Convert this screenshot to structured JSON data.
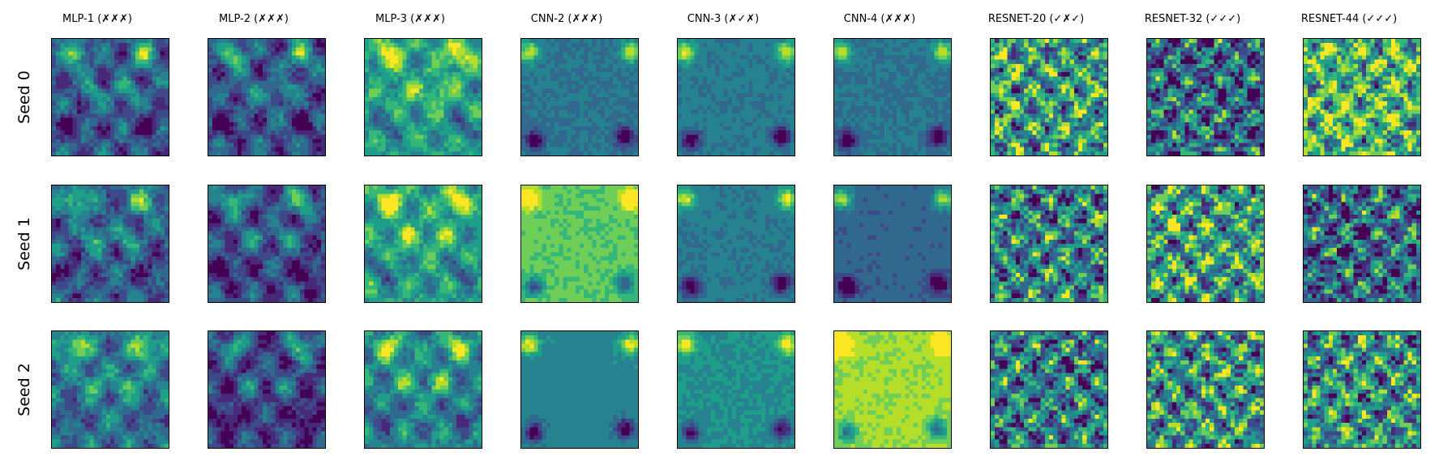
{
  "figure": {
    "colormap": "viridis",
    "columns": [
      {
        "label": "MLP-1 (✗✗✗)"
      },
      {
        "label": "MLP-2 (✗✗✗)"
      },
      {
        "label": "MLP-3 (✗✗✗)"
      },
      {
        "label": "CNN-2 (✗✗✗)"
      },
      {
        "label": "CNN-3 (✗✓✗)"
      },
      {
        "label": "CNN-4 (✗✗✗)"
      },
      {
        "label": "RESNET-20 (✓✗✓)"
      },
      {
        "label": "RESNET-32 (✓✓✓)"
      },
      {
        "label": "RESNET-44 (✓✓✓)"
      }
    ],
    "rows": [
      {
        "label": "Seed 0"
      },
      {
        "label": "Seed 1"
      },
      {
        "label": "Seed 2"
      }
    ],
    "grid_resolution": 28
  },
  "palette": [
    "#440154",
    "#482878",
    "#3e4989",
    "#31688e",
    "#26828e",
    "#1f9e89",
    "#35b779",
    "#6ece58",
    "#b5de2b",
    "#fde725"
  ]
}
